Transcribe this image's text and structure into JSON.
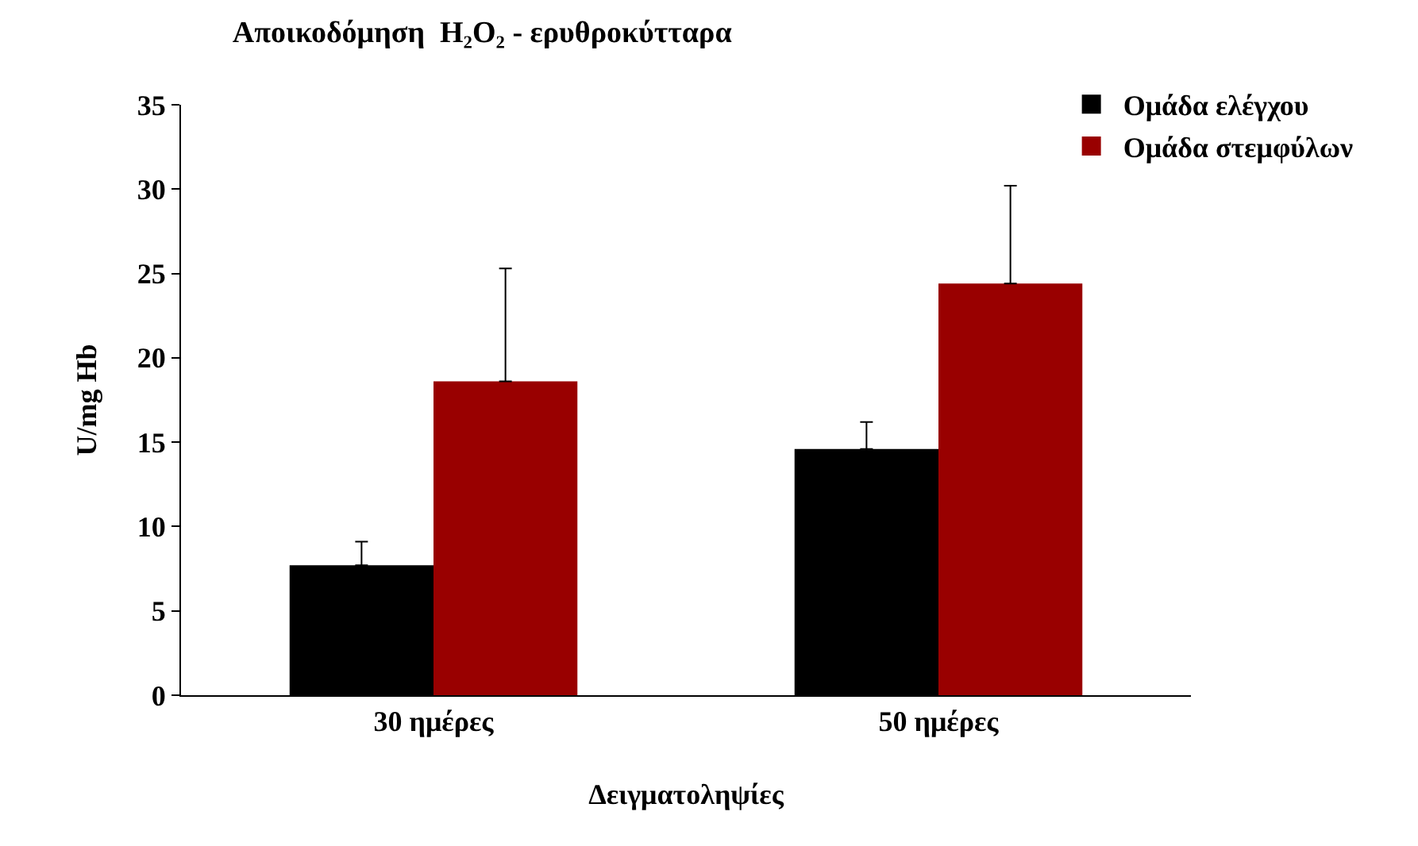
{
  "chart_data": {
    "type": "bar",
    "title": "Αποικοδόμηση  H₂O₂ - ερυθροκύτταρα",
    "xlabel": "Δειγματοληψίες",
    "ylabel": "U/mg Hb",
    "categories": [
      "30 ημέρες",
      "50 ημέρες"
    ],
    "series": [
      {
        "name": "Ομάδα ελέγχου",
        "color": "#000000",
        "values": [
          7.7,
          14.6
        ],
        "errors": [
          [
            7.7,
            9.1
          ],
          [
            14.6,
            16.2
          ]
        ]
      },
      {
        "name": "Ομάδα στεμφύλων",
        "color": "#990000",
        "values": [
          18.6,
          24.4
        ],
        "errors": [
          [
            18.6,
            25.3
          ],
          [
            24.4,
            30.2
          ]
        ]
      }
    ],
    "ylim": [
      0,
      35
    ],
    "yticks": [
      0,
      5,
      10,
      15,
      20,
      25,
      30,
      35
    ],
    "grid": false,
    "legend": "top right"
  }
}
